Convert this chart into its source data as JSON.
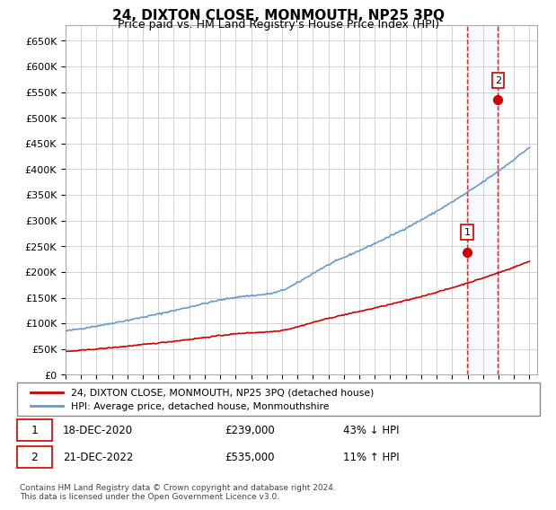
{
  "title": "24, DIXTON CLOSE, MONMOUTH, NP25 3PQ",
  "subtitle": "Price paid vs. HM Land Registry's House Price Index (HPI)",
  "ylabel_ticks": [
    "£0",
    "£50K",
    "£100K",
    "£150K",
    "£200K",
    "£250K",
    "£300K",
    "£350K",
    "£400K",
    "£450K",
    "£500K",
    "£550K",
    "£600K",
    "£650K"
  ],
  "ytick_values": [
    0,
    50000,
    100000,
    150000,
    200000,
    250000,
    300000,
    350000,
    400000,
    450000,
    500000,
    550000,
    600000,
    650000
  ],
  "ylim": [
    0,
    680000
  ],
  "xlim_start": 1995.0,
  "xlim_end": 2025.5,
  "hpi_color": "#6699cc",
  "price_color": "#cc0000",
  "grid_color": "#cccccc",
  "bg_color": "#ffffff",
  "transaction1_x": 2020.96,
  "transaction1_y": 239000,
  "transaction2_x": 2022.97,
  "transaction2_y": 535000,
  "legend_line1": "24, DIXTON CLOSE, MONMOUTH, NP25 3PQ (detached house)",
  "legend_line2": "HPI: Average price, detached house, Monmouthshire",
  "note1_date": "18-DEC-2020",
  "note1_price": "£239,000",
  "note1_hpi": "43% ↓ HPI",
  "note2_date": "21-DEC-2022",
  "note2_price": "£535,000",
  "note2_hpi": "11% ↑ HPI",
  "footer": "Contains HM Land Registry data © Crown copyright and database right 2024.\nThis data is licensed under the Open Government Licence v3.0."
}
